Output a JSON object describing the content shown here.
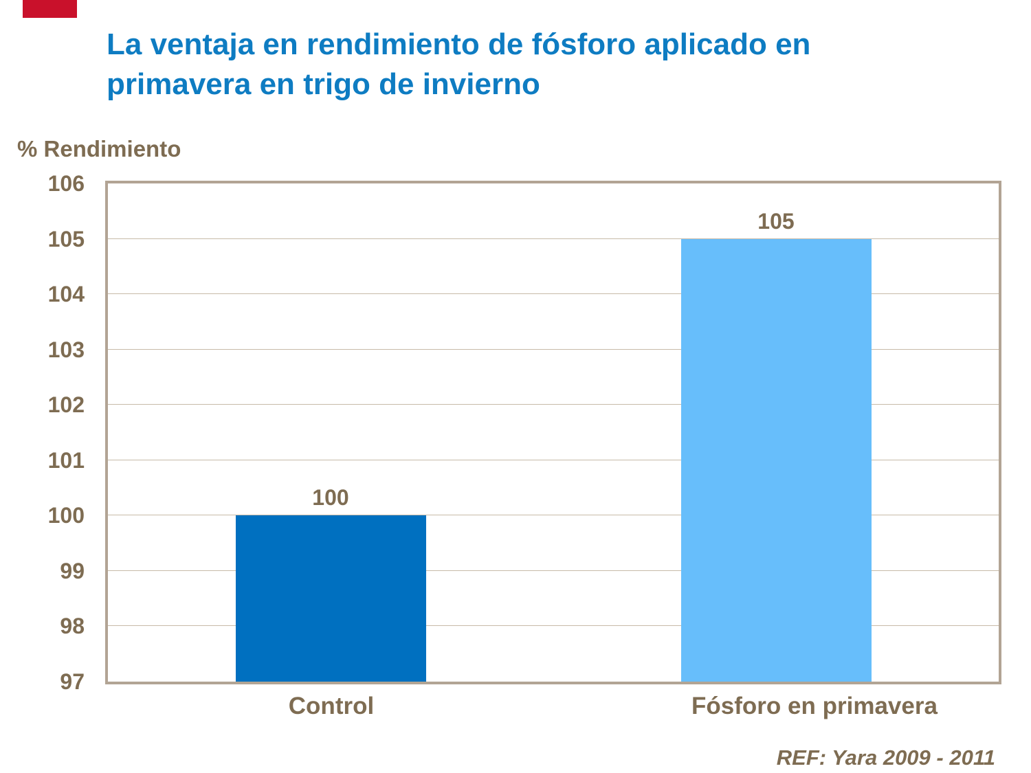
{
  "slide": {
    "title": "La ventaja en rendimiento de fósforo aplicado en primavera en trigo de invierno",
    "reference": "REF: Yara 2009 - 2011",
    "accent_bar_color": "#C9112B",
    "title_color": "#0E7CC2",
    "text_color": "#7E6C52"
  },
  "chart_data": {
    "type": "bar",
    "title": "",
    "xlabel": "",
    "ylabel": "% Rendimiento",
    "categories": [
      "Control",
      "Fósforo en primavera"
    ],
    "values": [
      100,
      105
    ],
    "data_labels": [
      "100",
      "105"
    ],
    "bar_colors": [
      "#0070C0",
      "#67BEFB"
    ],
    "ylim": [
      97,
      106
    ],
    "yticks": [
      106,
      105,
      104,
      103,
      102,
      101,
      100,
      99,
      98,
      97
    ],
    "grid": "horizontal",
    "legend": "none",
    "plot_border_color": "#B2A494",
    "gridline_color": "#C7BAA8"
  }
}
